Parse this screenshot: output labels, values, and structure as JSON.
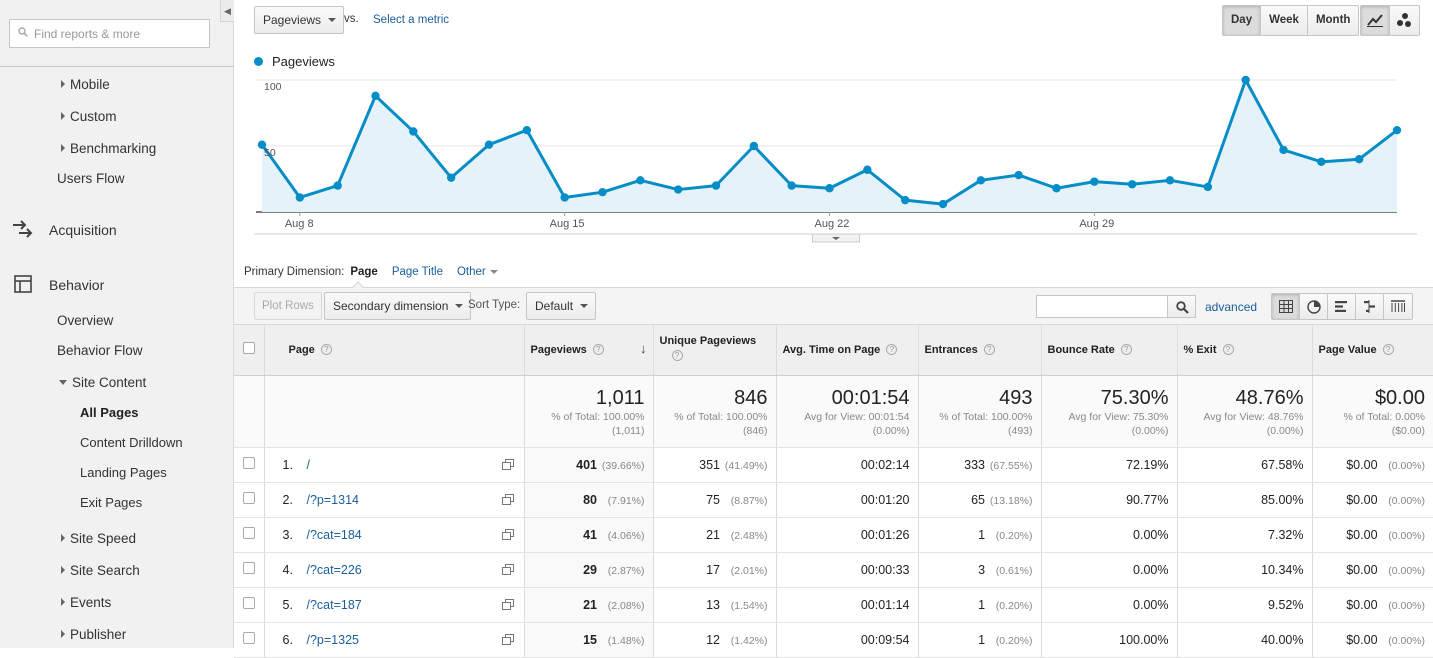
{
  "sidebar": {
    "search_placeholder": "Find reports & more",
    "collapse_glyph": "◀",
    "items": [
      {
        "label": "Mobile",
        "expander": "right"
      },
      {
        "label": "Custom",
        "expander": "right"
      },
      {
        "label": "Benchmarking",
        "expander": "right"
      },
      {
        "label": "Users Flow"
      },
      {
        "label": "Acquisition",
        "icon": "acquisition-icon"
      },
      {
        "label": "Behavior",
        "icon": "behavior-icon"
      },
      {
        "label": "Overview"
      },
      {
        "label": "Behavior Flow"
      },
      {
        "label": "Site Content",
        "expander": "down"
      },
      {
        "label": "All Pages",
        "active": true
      },
      {
        "label": "Content Drilldown"
      },
      {
        "label": "Landing Pages"
      },
      {
        "label": "Exit Pages"
      },
      {
        "label": "Site Speed",
        "expander": "right"
      },
      {
        "label": "Site Search",
        "expander": "right"
      },
      {
        "label": "Events",
        "expander": "right"
      },
      {
        "label": "Publisher",
        "expander": "right"
      }
    ]
  },
  "chart_controls": {
    "metric": "Pageviews",
    "vs": "vs.",
    "select_metric": "Select a metric",
    "granularity": [
      "Day",
      "Week",
      "Month"
    ],
    "granularity_active": "Day",
    "chart_type_icons": [
      "line-chart-icon",
      "motion-chart-icon"
    ]
  },
  "chart_data": {
    "type": "area",
    "title": "",
    "xlabel": "",
    "ylabel": "",
    "series": [
      {
        "name": "Pageviews",
        "color": "#058dc7",
        "values": [
          51,
          11,
          20,
          88,
          61,
          26,
          51,
          62,
          11,
          15,
          24,
          17,
          20,
          50,
          20,
          18,
          32,
          9,
          6,
          24,
          28,
          18,
          23,
          21,
          24,
          19,
          100,
          47,
          38,
          40,
          62
        ]
      }
    ],
    "x_tick_labels": [
      "Aug 8",
      "Aug 15",
      "Aug 22",
      "Aug 29"
    ],
    "x_tick_indices": [
      1,
      8,
      15,
      22
    ],
    "y_ticks": [
      50,
      100
    ],
    "ylim": [
      0,
      100
    ],
    "grid": true,
    "legend": "top-left"
  },
  "dimension": {
    "label": "Primary Dimension:",
    "current": "Page",
    "page_title": "Page Title",
    "other": "Other"
  },
  "toolbar": {
    "plot_rows": "Plot Rows",
    "secondary_dimension": "Secondary dimension",
    "sort_type_label": "Sort Type:",
    "sort_type_value": "Default",
    "search_value": "",
    "advanced": "advanced",
    "view_icons": [
      "data-table-icon",
      "pie-chart-icon",
      "performance-icon",
      "comparison-icon",
      "pivot-icon"
    ]
  },
  "table": {
    "headers": [
      "Page",
      "Pageviews",
      "Unique Pageviews",
      "Avg. Time on Page",
      "Entrances",
      "Bounce Rate",
      "% Exit",
      "Page Value"
    ],
    "sort_glyph": "↓",
    "help_glyph": "?",
    "totals": [
      {
        "value": "1,011",
        "sub1": "% of Total: 100.00%",
        "sub2": "(1,011)"
      },
      {
        "value": "846",
        "sub1": "% of Total: 100.00%",
        "sub2": "(846)"
      },
      {
        "value": "00:01:54",
        "sub1": "Avg for View: 00:01:54",
        "sub2": "(0.00%)"
      },
      {
        "value": "493",
        "sub1": "% of Total: 100.00%",
        "sub2": "(493)"
      },
      {
        "value": "75.30%",
        "sub1": "Avg for View: 75.30%",
        "sub2": "(0.00%)"
      },
      {
        "value": "48.76%",
        "sub1": "Avg for View: 48.76%",
        "sub2": "(0.00%)"
      },
      {
        "value": "$0.00",
        "sub1": "% of Total: 0.00%",
        "sub2": "($0.00)"
      }
    ],
    "rows": [
      {
        "idx": "1.",
        "page": "/",
        "pv": "401",
        "pv_pct": "(39.66%)",
        "upv": "351",
        "upv_pct": "(41.49%)",
        "avg": "00:02:14",
        "ent": "333",
        "ent_pct": "(67.55%)",
        "bounce": "72.19%",
        "exit": "67.58%",
        "val": "$0.00",
        "val_pct": "(0.00%)"
      },
      {
        "idx": "2.",
        "page": "/?p=1314",
        "pv": "80",
        "pv_pct": "(7.91%)",
        "upv": "75",
        "upv_pct": "(8.87%)",
        "avg": "00:01:20",
        "ent": "65",
        "ent_pct": "(13.18%)",
        "bounce": "90.77%",
        "exit": "85.00%",
        "val": "$0.00",
        "val_pct": "(0.00%)"
      },
      {
        "idx": "3.",
        "page": "/?cat=184",
        "pv": "41",
        "pv_pct": "(4.06%)",
        "upv": "21",
        "upv_pct": "(2.48%)",
        "avg": "00:01:26",
        "ent": "1",
        "ent_pct": "(0.20%)",
        "bounce": "0.00%",
        "exit": "7.32%",
        "val": "$0.00",
        "val_pct": "(0.00%)"
      },
      {
        "idx": "4.",
        "page": "/?cat=226",
        "pv": "29",
        "pv_pct": "(2.87%)",
        "upv": "17",
        "upv_pct": "(2.01%)",
        "avg": "00:00:33",
        "ent": "3",
        "ent_pct": "(0.61%)",
        "bounce": "0.00%",
        "exit": "10.34%",
        "val": "$0.00",
        "val_pct": "(0.00%)"
      },
      {
        "idx": "5.",
        "page": "/?cat=187",
        "pv": "21",
        "pv_pct": "(2.08%)",
        "upv": "13",
        "upv_pct": "(1.54%)",
        "avg": "00:01:14",
        "ent": "1",
        "ent_pct": "(0.20%)",
        "bounce": "0.00%",
        "exit": "9.52%",
        "val": "$0.00",
        "val_pct": "(0.00%)"
      },
      {
        "idx": "6.",
        "page": "/?p=1325",
        "pv": "15",
        "pv_pct": "(1.48%)",
        "upv": "12",
        "upv_pct": "(1.42%)",
        "avg": "00:09:54",
        "ent": "1",
        "ent_pct": "(0.20%)",
        "bounce": "100.00%",
        "exit": "40.00%",
        "val": "$0.00",
        "val_pct": "(0.00%)"
      }
    ]
  }
}
